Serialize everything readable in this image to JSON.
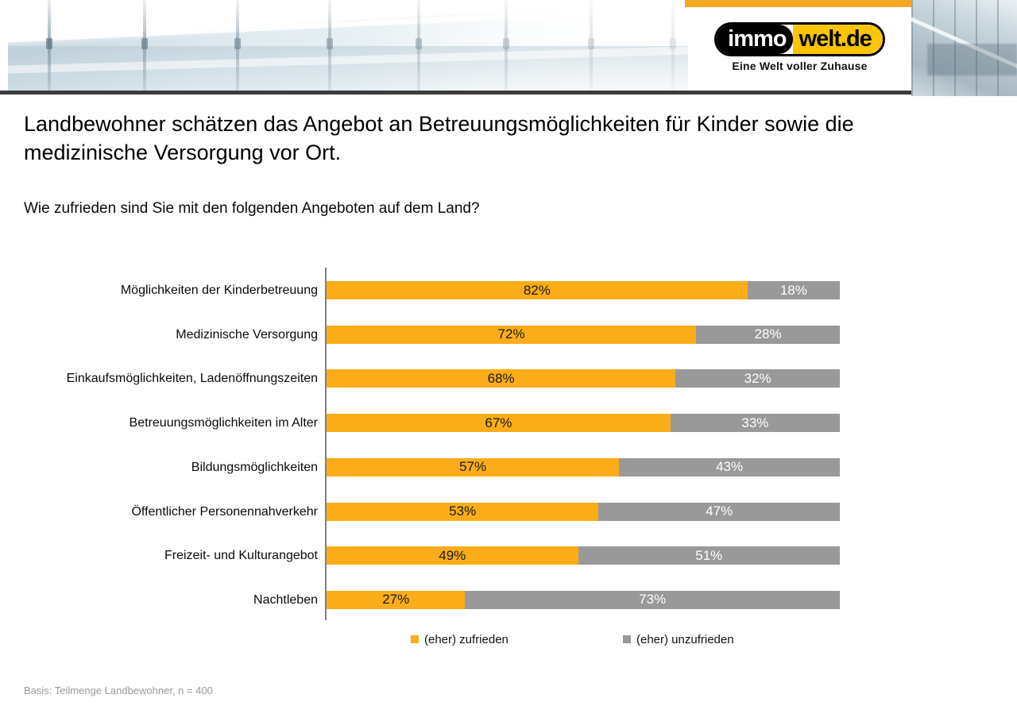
{
  "header": {
    "logo": {
      "part1": "immo",
      "part2": "welt.de",
      "tagline": "Eine Welt voller Zuhause",
      "yellow": "#fdc500"
    },
    "accent_bar_color": "#f7a823"
  },
  "title_lines": [
    "Landbewohner schätzen das Angebot an Betreuungsmöglichkeiten für Kinder sowie die",
    "medizinische Versorgung vor Ort."
  ],
  "subtitle": "Wie zufrieden sind Sie mit den folgenden Angeboten auf dem Land?",
  "chart_data": {
    "type": "bar",
    "orientation": "horizontal",
    "stacked": true,
    "grid": false,
    "xlim": [
      0,
      100
    ],
    "value_suffix": "%",
    "categories": [
      "Möglichkeiten der Kinderbetreuung",
      "Medizinische Versorgung",
      "Einkaufsmöglichkeiten, Ladenöffnungszeiten",
      "Betreuungsmöglichkeiten im Alter",
      "Bildungsmöglichkeiten",
      "Öffentlicher Personennahverkehr",
      "Freizeit- und Kulturangebot",
      "Nachtleben"
    ],
    "series": [
      {
        "name": "(eher) zufrieden",
        "color": "#faad18",
        "label_color": "#1a1a1a",
        "values": [
          82,
          72,
          68,
          67,
          57,
          53,
          49,
          27
        ]
      },
      {
        "name": "(eher) unzufrieden",
        "color": "#999999",
        "label_color": "#ffffff",
        "values": [
          18,
          28,
          32,
          33,
          43,
          47,
          51,
          73
        ]
      }
    ],
    "legend_position": "bottom"
  },
  "footer": {
    "basis": "Basis: Teilmenge Landbewohner, n = 400"
  }
}
